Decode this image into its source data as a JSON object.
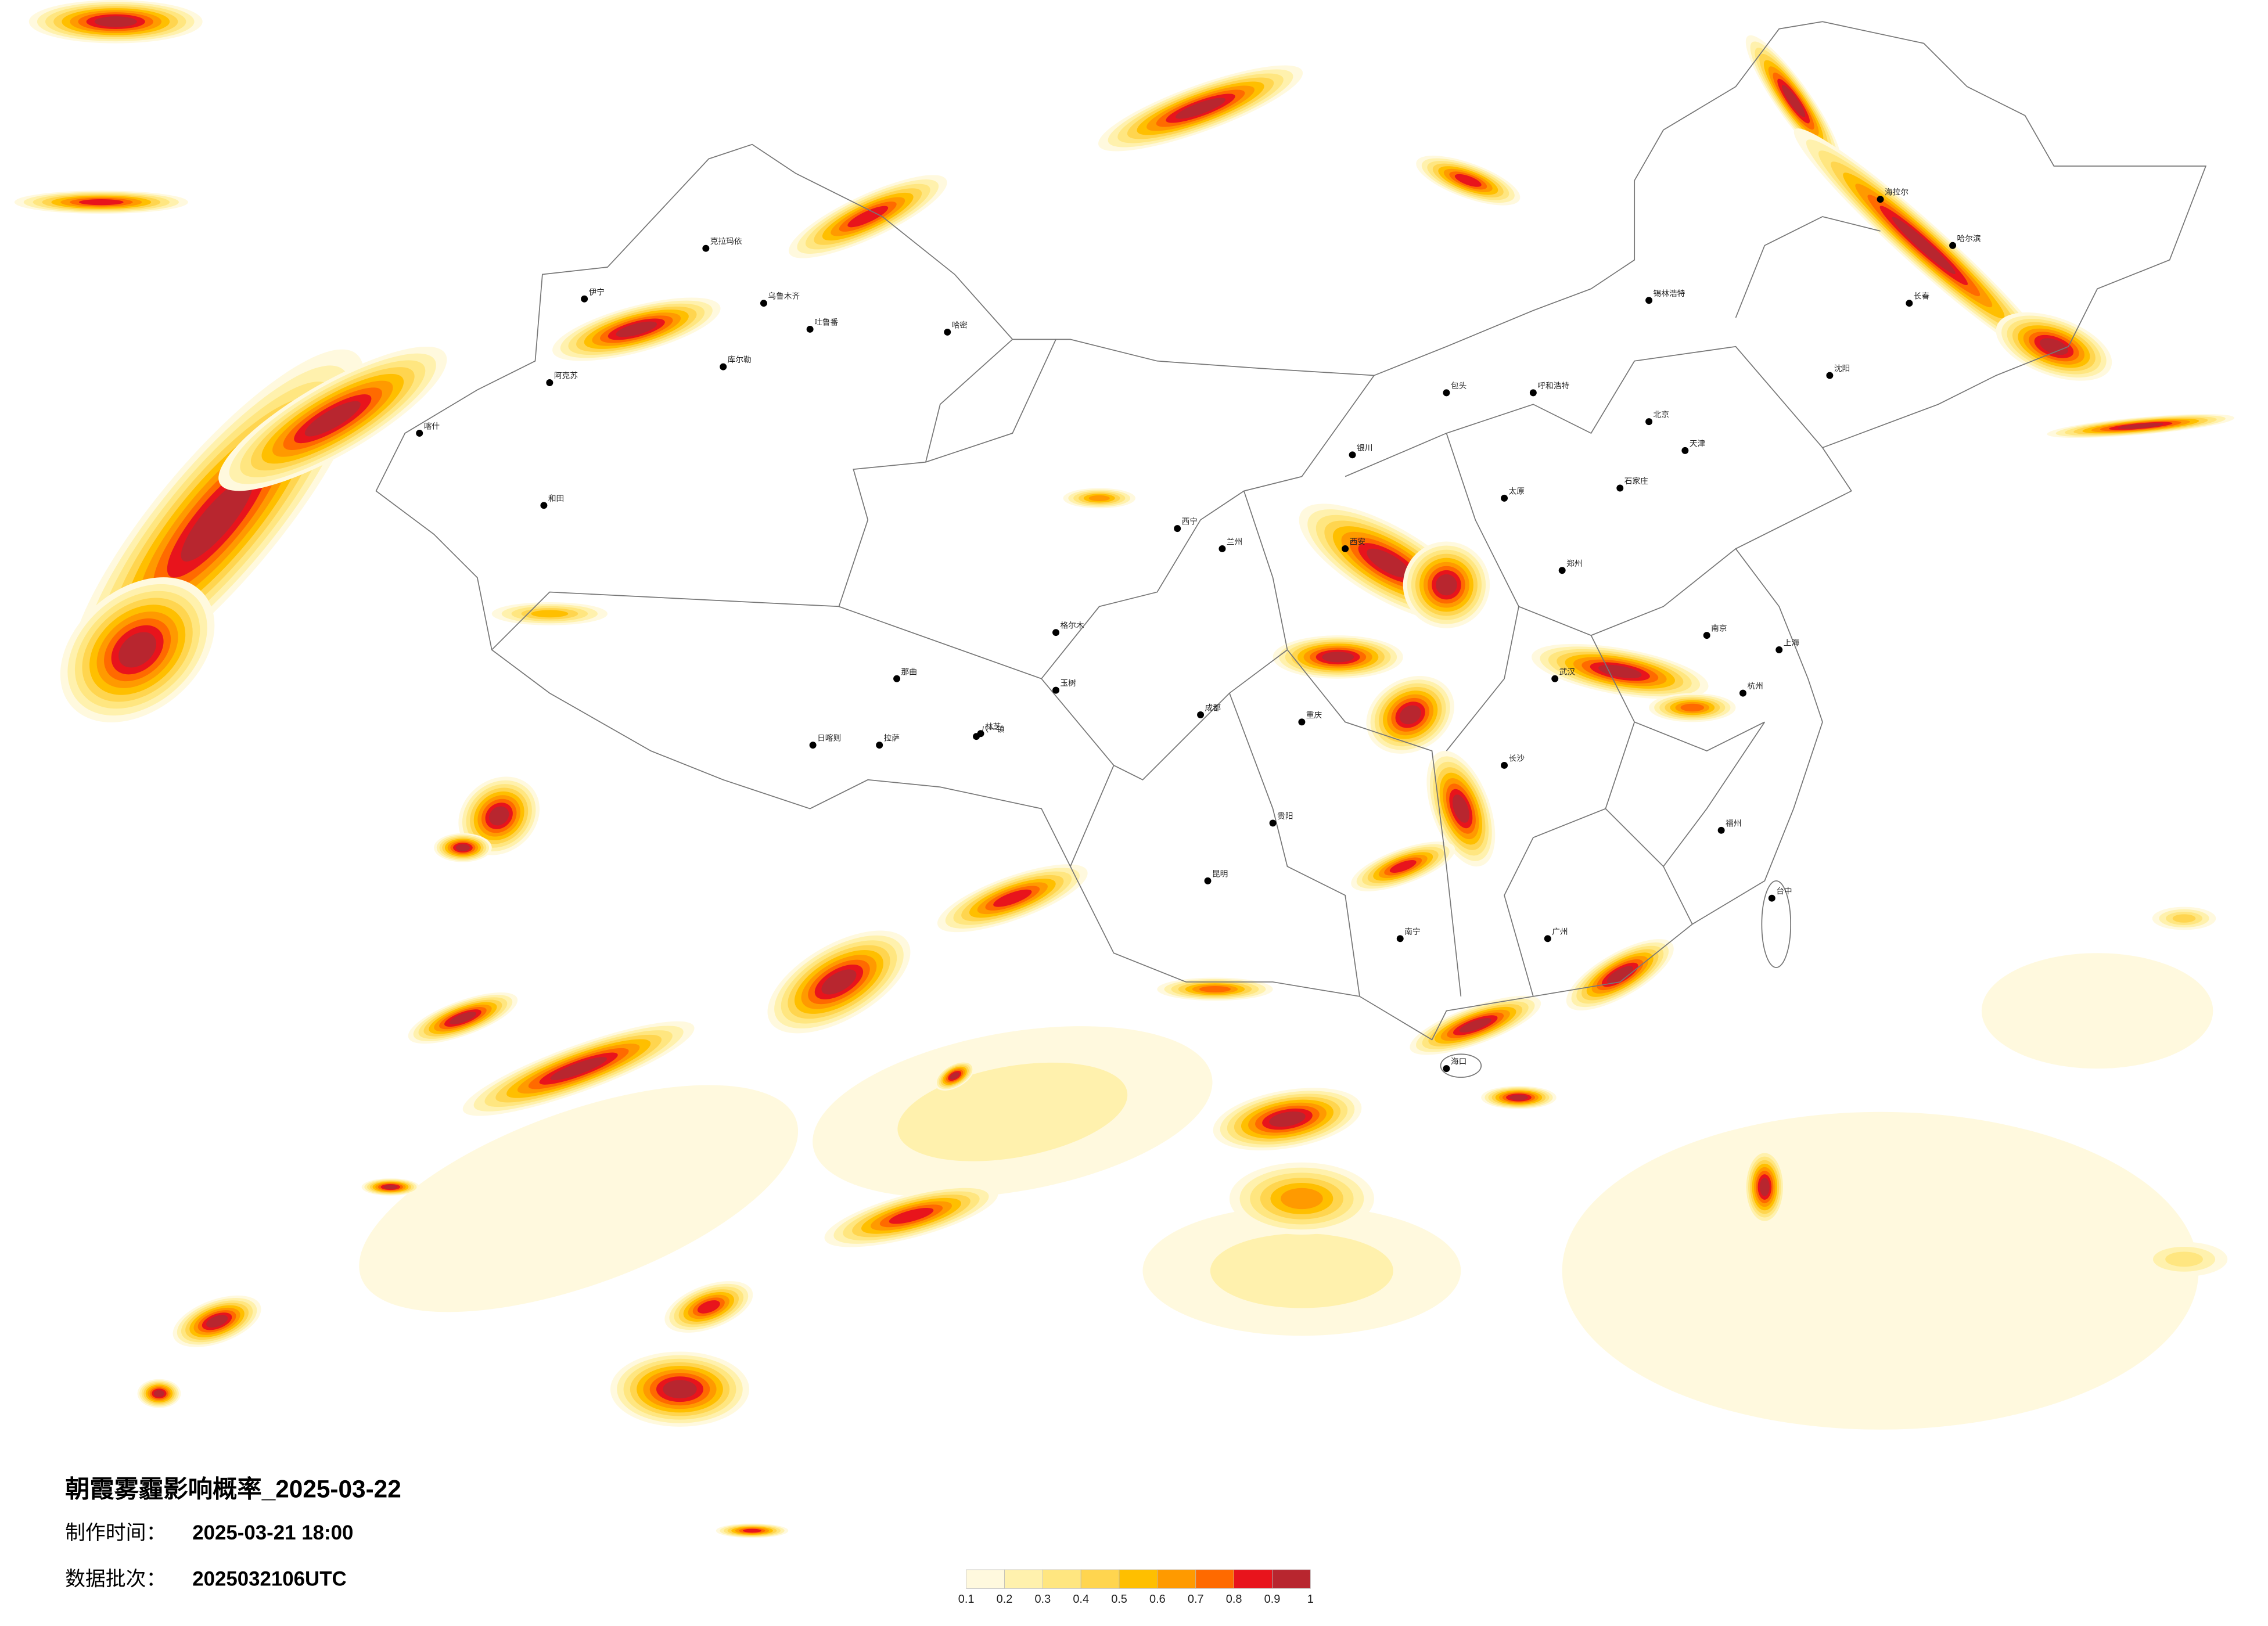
{
  "title": "朝霞雾霾影响概率_2025-03-22",
  "made_label": "制作时间：",
  "made_time": "2025-03-21 18:00",
  "batch_label": "数据批次：",
  "batch": "2025032106UTC",
  "colorbar": {
    "ticks": [
      0.1,
      0.2,
      0.3,
      0.4,
      0.5,
      0.6,
      0.7,
      0.8,
      0.9,
      1
    ],
    "colors": [
      "#fff9de",
      "#fff1ad",
      "#ffe680",
      "#ffd54f",
      "#ffbf00",
      "#ff9a00",
      "#ff6a00",
      "#e8141c",
      "#b8262f"
    ]
  },
  "cities": [
    "克拉玛依",
    "乌鲁木齐",
    "吐鲁番",
    "哈密",
    "伊宁",
    "阿克苏",
    "库尔勒",
    "和田",
    "喀什",
    "格尔木",
    "那曲",
    "拉萨",
    "日喀则",
    "八一镇",
    "林芝",
    "玉树",
    "西宁",
    "兰州",
    "银川",
    "呼和浩特",
    "包头",
    "锡林浩特",
    "海拉尔",
    "哈尔滨",
    "长春",
    "沈阳",
    "北京",
    "天津",
    "石家庄",
    "太原",
    "郑州",
    "西安",
    "成都",
    "重庆",
    "贵阳",
    "昆明",
    "南宁",
    "长沙",
    "武汉",
    "南京",
    "上海",
    "杭州",
    "福州",
    "广州",
    "海口",
    "台中"
  ]
}
